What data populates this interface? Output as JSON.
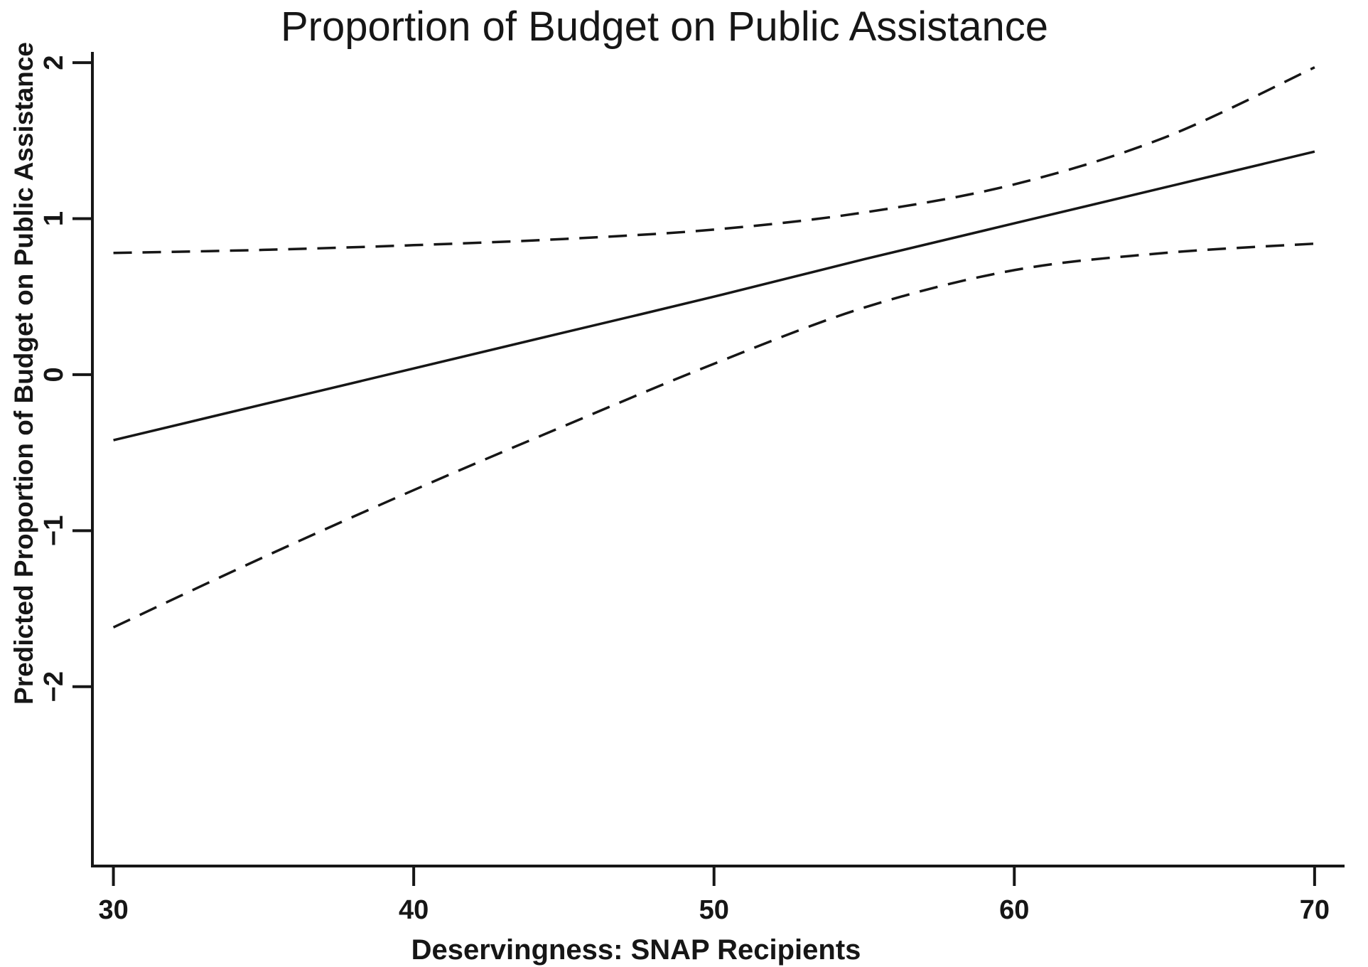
{
  "chart_data": {
    "type": "line",
    "title": "Proportion of Budget on Public Assistance",
    "xlabel": "Deservingness: SNAP Recipients",
    "ylabel": "Predicted Proportion of Budget on Public Assistance",
    "x": [
      30,
      35,
      40,
      45,
      50,
      55,
      60,
      65,
      70
    ],
    "series": [
      {
        "name": "predicted-fit",
        "style": "solid",
        "values": [
          -0.42,
          -0.19,
          0.04,
          0.27,
          0.5,
          0.74,
          0.97,
          1.2,
          1.43
        ]
      },
      {
        "name": "upper-confidence-bound",
        "style": "dashed",
        "values": [
          0.78,
          0.8,
          0.83,
          0.87,
          0.93,
          1.04,
          1.22,
          1.52,
          1.97
        ]
      },
      {
        "name": "lower-confidence-bound",
        "style": "dashed",
        "values": [
          -1.62,
          -1.17,
          -0.74,
          -0.33,
          0.07,
          0.43,
          0.67,
          0.78,
          0.84
        ]
      }
    ],
    "x_ticks": [
      {
        "value": 30,
        "label": "30"
      },
      {
        "value": 40,
        "label": "40"
      },
      {
        "value": 50,
        "label": "50"
      },
      {
        "value": 60,
        "label": "60"
      },
      {
        "value": 70,
        "label": "70"
      }
    ],
    "y_ticks": [
      {
        "value": -2,
        "label": "−2"
      },
      {
        "value": -1,
        "label": "−1"
      },
      {
        "value": 0,
        "label": "0"
      },
      {
        "value": 1,
        "label": "1"
      },
      {
        "value": 2,
        "label": "2"
      }
    ],
    "xlim": [
      29.3,
      70.95
    ],
    "ylim": [
      -3.15,
      2.06
    ],
    "grid": false,
    "legend": "none",
    "background_color": "#ffffff",
    "line_color": "#161616"
  }
}
